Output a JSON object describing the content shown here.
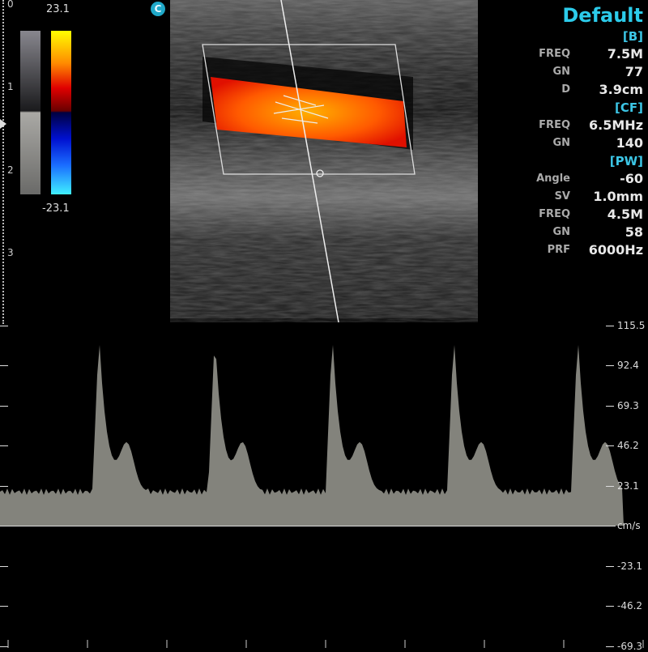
{
  "depth_scale": {
    "labels": [
      "0",
      "1",
      "2",
      "3"
    ],
    "unit": "cm"
  },
  "color_bar": {
    "max": "23.1",
    "min": "-23.1"
  },
  "mode_badge": "C",
  "preset": "Default",
  "params": [
    {
      "section": "[B]",
      "rows": [
        {
          "k": "FREQ",
          "v": "7.5M"
        },
        {
          "k": "GN",
          "v": "77"
        },
        {
          "k": "D",
          "v": "3.9cm"
        }
      ]
    },
    {
      "section": "[CF]",
      "rows": [
        {
          "k": "FREQ",
          "v": "6.5MHz"
        },
        {
          "k": "GN",
          "v": "140"
        }
      ]
    },
    {
      "section": "[PW]",
      "rows": [
        {
          "k": "Angle",
          "v": "-60"
        },
        {
          "k": "SV",
          "v": "1.0mm"
        },
        {
          "k": "FREQ",
          "v": "4.5M"
        },
        {
          "k": "GN",
          "v": "58"
        },
        {
          "k": "PRF",
          "v": "6000Hz"
        }
      ]
    }
  ],
  "spectrum_scale": {
    "unit": "cm/s",
    "ticks": [
      "115.5",
      "92.4",
      "69.3",
      "46.2",
      "23.1",
      "-23.1",
      "-46.2",
      "-69.3"
    ]
  },
  "colors": {
    "accent": "#2ccbea",
    "flow": "#ff3a00"
  }
}
